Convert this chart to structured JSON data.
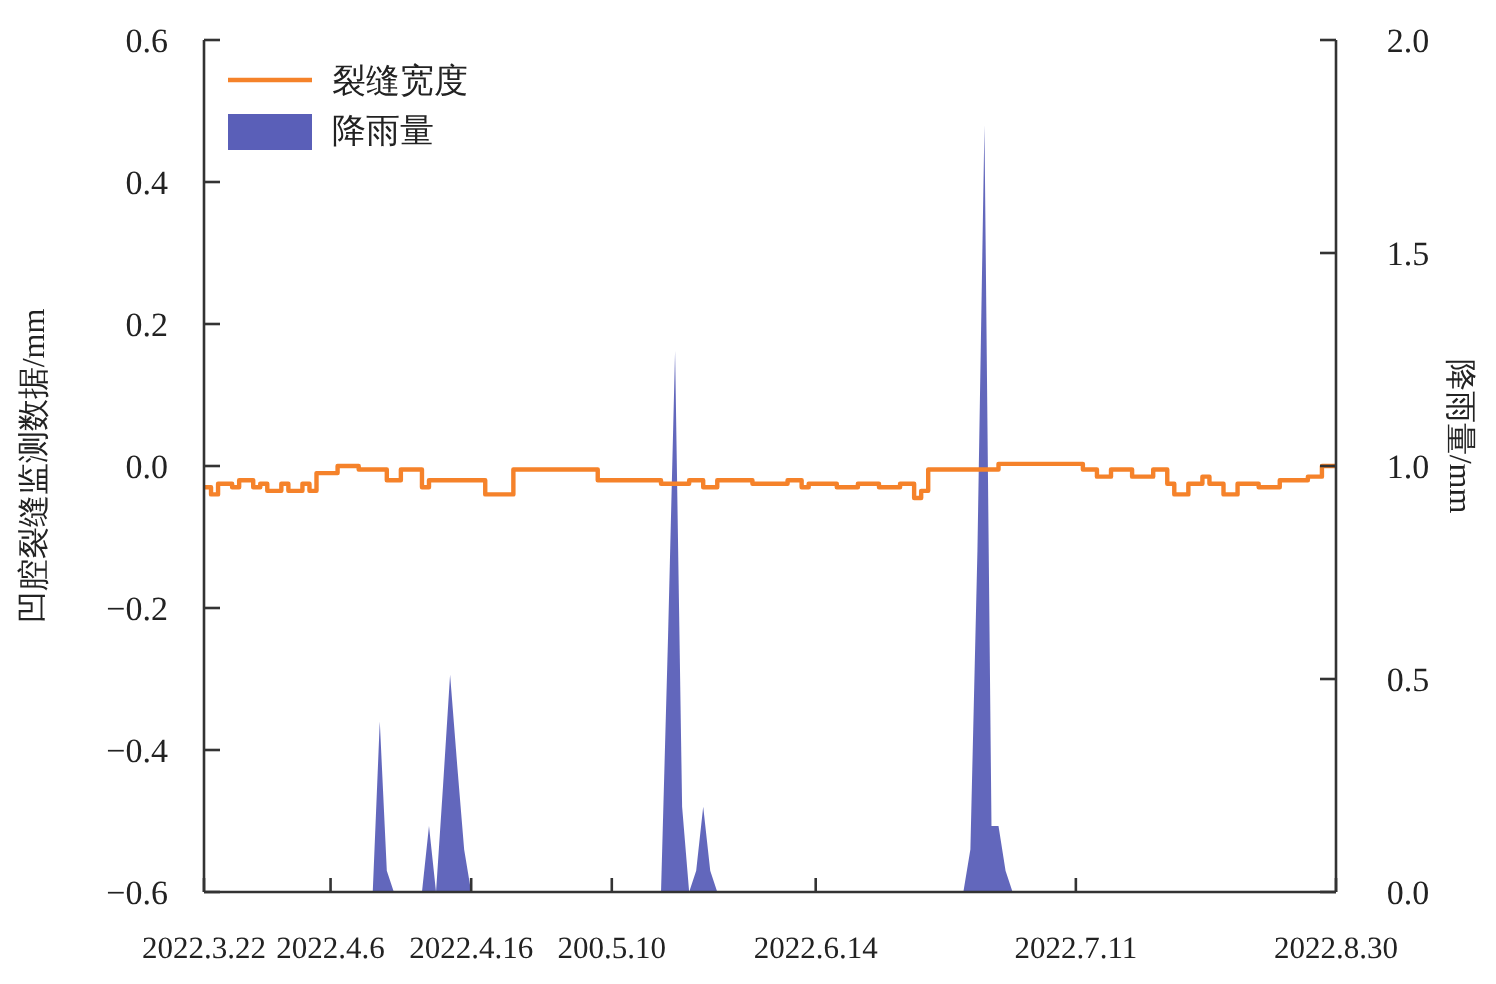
{
  "chart_data": {
    "type": "step",
    "ylabel": "凹腔裂缝监测数据/mm",
    "y2label": "降雨量/mm",
    "categories": [
      "2022.3.22",
      null,
      null,
      null,
      null,
      null,
      null,
      null,
      null,
      null,
      null,
      null,
      null,
      null,
      null,
      null,
      null,
      null,
      "2022.4.6",
      null,
      null,
      null,
      null,
      null,
      null,
      null,
      null,
      null,
      null,
      null,
      null,
      null,
      null,
      null,
      null,
      null,
      null,
      null,
      "2022.4.16",
      null,
      null,
      null,
      null,
      null,
      null,
      null,
      null,
      null,
      null,
      null,
      null,
      null,
      null,
      null,
      null,
      null,
      null,
      null,
      "200.5.10",
      null,
      null,
      null,
      null,
      null,
      null,
      null,
      null,
      null,
      null,
      null,
      null,
      null,
      null,
      null,
      null,
      null,
      null,
      null,
      null,
      null,
      null,
      null,
      null,
      null,
      null,
      null,
      null,
      "2022.6.14",
      null,
      null,
      null,
      null,
      null,
      null,
      null,
      null,
      null,
      null,
      null,
      null,
      null,
      null,
      null,
      null,
      null,
      null,
      null,
      null,
      null,
      null,
      null,
      null,
      null,
      null,
      null,
      null,
      null,
      null,
      null,
      null,
      null,
      null,
      null,
      null,
      "2022.7.11",
      null,
      null,
      null,
      null,
      null,
      null,
      null,
      null,
      null,
      null,
      null,
      null,
      null,
      null,
      null,
      null,
      null,
      null,
      null,
      null,
      null,
      null,
      null,
      null,
      null,
      null,
      null,
      null,
      null,
      null,
      null,
      null,
      null,
      null,
      null,
      null,
      "2022.8.30"
    ],
    "ylim": [
      -0.6,
      0.6
    ],
    "yticks": [
      {
        "value": -0.6,
        "label": "−0.6"
      },
      {
        "value": -0.4,
        "label": "−0.4"
      },
      {
        "value": -0.2,
        "label": "−0.2"
      },
      {
        "value": 0,
        "label": "0.0"
      },
      0.2,
      0.4,
      0.6
    ],
    "y2lim": [
      0,
      2
    ],
    "y2ticks": [
      {
        "value": 0,
        "label": "0.0"
      },
      0.5,
      {
        "value": 1,
        "label": "1.0"
      },
      1.5,
      {
        "value": 2,
        "label": "2.0"
      }
    ],
    "legend": "top left",
    "grid": false,
    "series": [
      {
        "name": "裂缝宽度",
        "color": "#f5822a",
        "values": [
          -0.03,
          -0.04,
          -0.025,
          -0.025,
          -0.03,
          -0.02,
          -0.02,
          -0.03,
          -0.025,
          -0.035,
          -0.035,
          -0.025,
          -0.035,
          -0.035,
          -0.025,
          -0.035,
          -0.01,
          -0.01,
          -0.01,
          0.0,
          0.0,
          0.0,
          -0.005,
          -0.005,
          -0.005,
          -0.005,
          -0.02,
          -0.02,
          -0.005,
          -0.005,
          -0.005,
          -0.03,
          -0.02,
          -0.02,
          -0.02,
          -0.02,
          -0.02,
          -0.02,
          -0.02,
          -0.02,
          -0.04,
          -0.04,
          -0.04,
          -0.04,
          -0.005,
          -0.005,
          -0.005,
          -0.005,
          -0.005,
          -0.005,
          -0.005,
          -0.005,
          -0.005,
          -0.005,
          -0.005,
          -0.005,
          -0.02,
          -0.02,
          -0.02,
          -0.02,
          -0.02,
          -0.02,
          -0.02,
          -0.02,
          -0.02,
          -0.025,
          -0.025,
          -0.025,
          -0.025,
          -0.02,
          -0.02,
          -0.03,
          -0.03,
          -0.02,
          -0.02,
          -0.02,
          -0.02,
          -0.02,
          -0.025,
          -0.025,
          -0.025,
          -0.025,
          -0.025,
          -0.02,
          -0.02,
          -0.03,
          -0.025,
          -0.025,
          -0.025,
          -0.025,
          -0.03,
          -0.03,
          -0.03,
          -0.025,
          -0.025,
          -0.025,
          -0.03,
          -0.03,
          -0.03,
          -0.025,
          -0.025,
          -0.045,
          -0.035,
          -0.005,
          -0.005,
          -0.005,
          -0.005,
          -0.005,
          -0.005,
          -0.005,
          -0.005,
          -0.005,
          -0.005,
          0.003,
          0.003,
          0.003,
          0.003,
          0.003,
          0.003,
          0.003,
          0.003,
          0.003,
          0.003,
          0.003,
          0.003,
          -0.005,
          -0.005,
          -0.015,
          -0.015,
          -0.005,
          -0.005,
          -0.005,
          -0.015,
          -0.015,
          -0.015,
          -0.005,
          -0.005,
          -0.025,
          -0.04,
          -0.04,
          -0.025,
          -0.025,
          -0.015,
          -0.025,
          -0.025,
          -0.04,
          -0.04,
          -0.025,
          -0.025,
          -0.025,
          -0.03,
          -0.03,
          -0.03,
          -0.02,
          -0.02,
          -0.02,
          -0.02,
          -0.015,
          -0.015,
          0.0,
          0.0,
          0.0
        ]
      },
      {
        "name": "降雨量",
        "type": "area",
        "axis": "y2",
        "color": "#5a5fb8",
        "values": [
          0,
          0,
          0,
          0,
          0,
          0,
          0,
          0,
          0,
          0,
          0,
          0,
          0,
          0,
          0,
          0,
          0,
          0,
          0,
          0,
          0,
          0,
          0,
          0,
          0,
          0.4,
          0.05,
          0,
          0,
          0,
          0,
          0,
          0.155,
          0,
          0.25,
          0.51,
          0.3,
          0.1,
          0,
          0,
          0,
          0,
          0,
          0,
          0,
          0,
          0,
          0,
          0,
          0,
          0,
          0,
          0,
          0,
          0,
          0,
          0,
          0,
          0,
          0,
          0,
          0,
          0,
          0,
          0,
          0,
          0.6,
          1.27,
          0.2,
          0,
          0.05,
          0.2,
          0.05,
          0,
          0,
          0,
          0,
          0,
          0,
          0,
          0,
          0,
          0,
          0,
          0,
          0,
          0,
          0,
          0,
          0,
          0,
          0,
          0,
          0,
          0,
          0,
          0,
          0,
          0,
          0,
          0,
          0,
          0,
          0,
          0,
          0,
          0,
          0,
          0,
          0.1,
          0.8,
          1.8,
          0.155,
          0.155,
          0.05,
          0,
          0,
          0,
          0,
          0,
          0,
          0,
          0,
          0,
          0,
          0,
          0,
          0,
          0,
          0,
          0,
          0,
          0,
          0,
          0,
          0,
          0,
          0,
          0,
          0,
          0,
          0,
          0,
          0,
          0,
          0,
          0,
          0,
          0,
          0,
          0,
          0,
          0,
          0,
          0,
          0,
          0,
          0,
          0,
          0,
          0,
          0
        ]
      }
    ]
  }
}
